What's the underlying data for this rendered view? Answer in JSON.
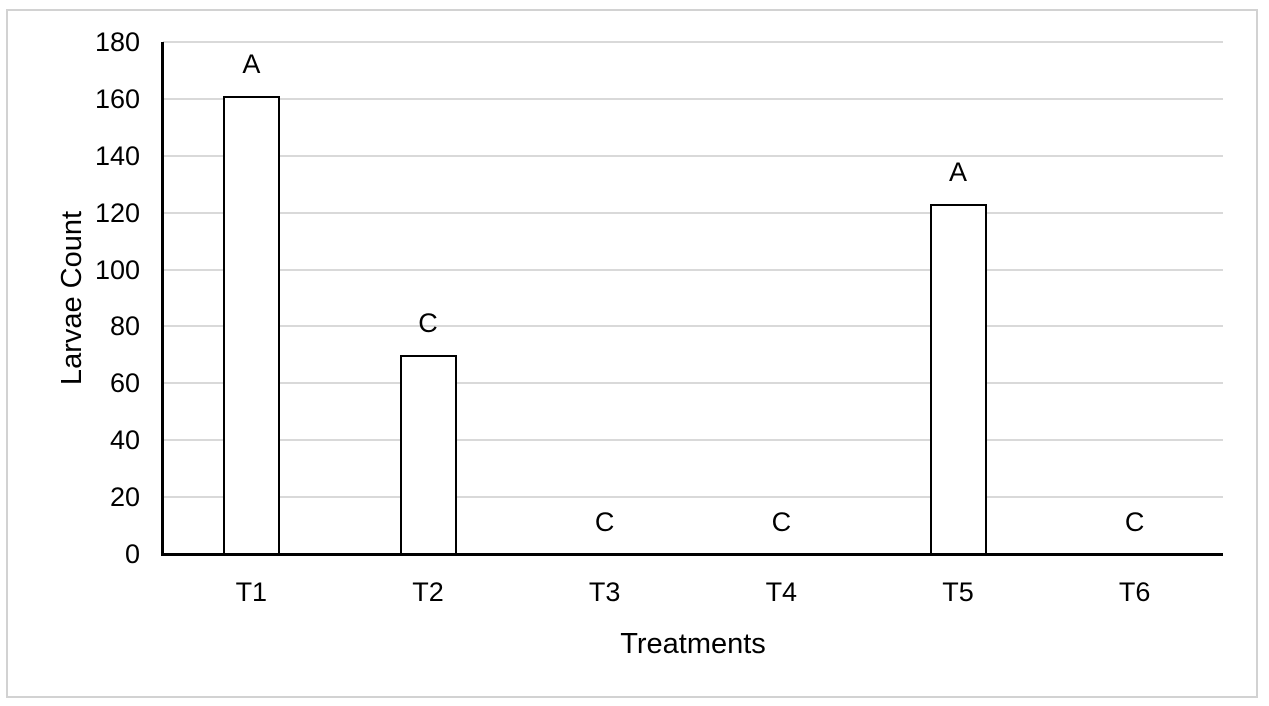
{
  "chart_data": {
    "type": "bar",
    "title": "",
    "categories": [
      "T1",
      "T2",
      "T3",
      "T4",
      "T5",
      "T6"
    ],
    "values": [
      161,
      70,
      0,
      0,
      123,
      0
    ],
    "bar_labels": [
      "A",
      "C",
      "C",
      "C",
      "A",
      "C"
    ],
    "xlabel": "Treatments",
    "ylabel": "Larvae Count",
    "ylim": [
      0,
      180
    ],
    "yticks": [
      0,
      20,
      40,
      60,
      80,
      100,
      120,
      140,
      160,
      180
    ],
    "grid": true,
    "legend": false,
    "colors": {
      "bar_fill": "#ffffff",
      "bar_border": "#000000",
      "gridline": "#d9d9d9",
      "axis": "#000000",
      "text": "#000000",
      "frame_border": "#d2d2d2"
    }
  }
}
